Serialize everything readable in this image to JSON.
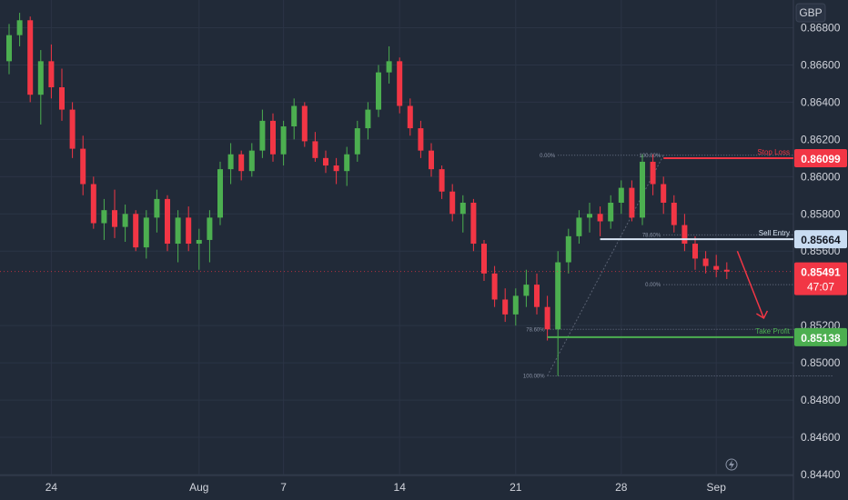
{
  "chart_data": {
    "type": "candlestick",
    "symbol_currency": "GBP",
    "ylim": [
      0.844,
      0.869
    ],
    "y_ticks": [
      0.868,
      0.866,
      0.864,
      0.862,
      0.86,
      0.858,
      0.856,
      0.852,
      0.85,
      0.848,
      0.846,
      0.844
    ],
    "x_ticks": [
      {
        "label": "24",
        "i": 4
      },
      {
        "label": "Aug",
        "i": 18
      },
      {
        "label": "7",
        "i": 26
      },
      {
        "label": "14",
        "i": 37
      },
      {
        "label": "21",
        "i": 48
      },
      {
        "label": "28",
        "i": 58
      },
      {
        "label": "Sep",
        "i": 67
      }
    ],
    "levels": [
      {
        "name": "Stop Loss",
        "price": 0.86099,
        "price_label": "0.86099",
        "color": "#f23645",
        "start_i": 62
      },
      {
        "name": "Sell Entry",
        "price": 0.85664,
        "price_label": "0.85664",
        "color": "#d9e6f5",
        "start_i": 56
      },
      {
        "name": "Take Profit",
        "price": 0.85138,
        "price_label": "0.85138",
        "color": "#4caf50",
        "start_i": 51
      }
    ],
    "current_price": {
      "label": "0.85491",
      "value": 0.85491,
      "countdown": "47:07",
      "color": "#f23645"
    },
    "fib_labels": [
      "0.00%",
      "100.00%",
      "78.60%",
      "0.00%",
      "78.60%",
      "100.00%"
    ],
    "fib_levels": [
      {
        "label_i": 0,
        "price": 0.86115,
        "x_from_i": 52,
        "x_to_i": 62
      },
      {
        "label_i": 1,
        "price": 0.86115,
        "x_from_i": 62,
        "x_to_i": 78
      },
      {
        "label_i": 2,
        "price": 0.85687,
        "x_from_i": 62,
        "x_to_i": 78
      },
      {
        "label_i": 3,
        "price": 0.8542,
        "x_from_i": 62,
        "x_to_i": 78
      },
      {
        "label_i": 4,
        "price": 0.8518,
        "x_from_i": 51,
        "x_to_i": 78
      },
      {
        "label_i": 5,
        "price": 0.8493,
        "x_from_i": 51,
        "x_to_i": 78
      }
    ],
    "candles": [
      [
        0.8662,
        0.8682,
        0.8655,
        0.8676
      ],
      [
        0.8676,
        0.8688,
        0.867,
        0.8684
      ],
      [
        0.8684,
        0.8686,
        0.864,
        0.8644
      ],
      [
        0.8644,
        0.8668,
        0.8628,
        0.8662
      ],
      [
        0.8662,
        0.8671,
        0.8642,
        0.8648
      ],
      [
        0.8648,
        0.8658,
        0.863,
        0.8636
      ],
      [
        0.8636,
        0.864,
        0.861,
        0.8615
      ],
      [
        0.8615,
        0.8622,
        0.859,
        0.8596
      ],
      [
        0.8596,
        0.86,
        0.8572,
        0.8575
      ],
      [
        0.8575,
        0.8588,
        0.8566,
        0.8582
      ],
      [
        0.8582,
        0.8593,
        0.8567,
        0.8573
      ],
      [
        0.8573,
        0.8585,
        0.8565,
        0.858
      ],
      [
        0.858,
        0.8582,
        0.856,
        0.8562
      ],
      [
        0.8562,
        0.8582,
        0.8556,
        0.8578
      ],
      [
        0.8578,
        0.8593,
        0.857,
        0.8588
      ],
      [
        0.8588,
        0.859,
        0.856,
        0.8564
      ],
      [
        0.8564,
        0.8582,
        0.8554,
        0.8578
      ],
      [
        0.8578,
        0.8584,
        0.856,
        0.8564
      ],
      [
        0.8564,
        0.8572,
        0.855,
        0.8566
      ],
      [
        0.8566,
        0.8582,
        0.8554,
        0.8578
      ],
      [
        0.8578,
        0.8608,
        0.8574,
        0.8604
      ],
      [
        0.8604,
        0.8618,
        0.8596,
        0.8612
      ],
      [
        0.8612,
        0.8614,
        0.8598,
        0.8603
      ],
      [
        0.8603,
        0.8618,
        0.86,
        0.8614
      ],
      [
        0.8614,
        0.8636,
        0.861,
        0.863
      ],
      [
        0.863,
        0.8634,
        0.8608,
        0.8612
      ],
      [
        0.8612,
        0.863,
        0.8606,
        0.8627
      ],
      [
        0.8627,
        0.8642,
        0.862,
        0.8638
      ],
      [
        0.8638,
        0.864,
        0.8616,
        0.8619
      ],
      [
        0.8619,
        0.8624,
        0.8608,
        0.861
      ],
      [
        0.861,
        0.8614,
        0.8602,
        0.8606
      ],
      [
        0.8606,
        0.861,
        0.8596,
        0.8603
      ],
      [
        0.8603,
        0.8616,
        0.8595,
        0.8612
      ],
      [
        0.8612,
        0.863,
        0.8608,
        0.8626
      ],
      [
        0.8626,
        0.864,
        0.862,
        0.8636
      ],
      [
        0.8636,
        0.866,
        0.8632,
        0.8656
      ],
      [
        0.8656,
        0.867,
        0.865,
        0.8662
      ],
      [
        0.8662,
        0.8664,
        0.8634,
        0.8638
      ],
      [
        0.8638,
        0.8642,
        0.8622,
        0.8626
      ],
      [
        0.8626,
        0.863,
        0.861,
        0.8614
      ],
      [
        0.8614,
        0.8618,
        0.86,
        0.8604
      ],
      [
        0.8604,
        0.8606,
        0.8588,
        0.8592
      ],
      [
        0.8592,
        0.8596,
        0.8576,
        0.858
      ],
      [
        0.858,
        0.859,
        0.857,
        0.8586
      ],
      [
        0.8586,
        0.8588,
        0.856,
        0.8564
      ],
      [
        0.8564,
        0.8566,
        0.8544,
        0.8548
      ],
      [
        0.8548,
        0.8552,
        0.853,
        0.8534
      ],
      [
        0.8534,
        0.854,
        0.8522,
        0.8526
      ],
      [
        0.8526,
        0.854,
        0.852,
        0.8536
      ],
      [
        0.8536,
        0.855,
        0.853,
        0.8542
      ],
      [
        0.8542,
        0.8548,
        0.8526,
        0.853
      ],
      [
        0.853,
        0.8536,
        0.8512,
        0.8518
      ],
      [
        0.8518,
        0.856,
        0.8493,
        0.8554
      ],
      [
        0.8554,
        0.8572,
        0.8548,
        0.8568
      ],
      [
        0.8568,
        0.8582,
        0.8564,
        0.8578
      ],
      [
        0.8578,
        0.8586,
        0.857,
        0.858
      ],
      [
        0.858,
        0.8584,
        0.8568,
        0.8576
      ],
      [
        0.8576,
        0.859,
        0.8572,
        0.8586
      ],
      [
        0.8586,
        0.8598,
        0.858,
        0.8594
      ],
      [
        0.8594,
        0.8598,
        0.8576,
        0.8578
      ],
      [
        0.8578,
        0.8612,
        0.8574,
        0.8608
      ],
      [
        0.8608,
        0.8612,
        0.859,
        0.8596
      ],
      [
        0.8596,
        0.86,
        0.858,
        0.8586
      ],
      [
        0.8586,
        0.859,
        0.857,
        0.8574
      ],
      [
        0.8574,
        0.858,
        0.856,
        0.8564
      ],
      [
        0.8564,
        0.8568,
        0.855,
        0.8556
      ],
      [
        0.8556,
        0.856,
        0.8548,
        0.8552
      ],
      [
        0.8552,
        0.8558,
        0.8546,
        0.855
      ],
      [
        0.855,
        0.8554,
        0.8545,
        0.8549
      ]
    ]
  },
  "colors": {
    "up": "#4caf50",
    "down": "#f23645",
    "grid": "#2b3445",
    "bg": "#212a38",
    "text": "#d1d4dc"
  }
}
